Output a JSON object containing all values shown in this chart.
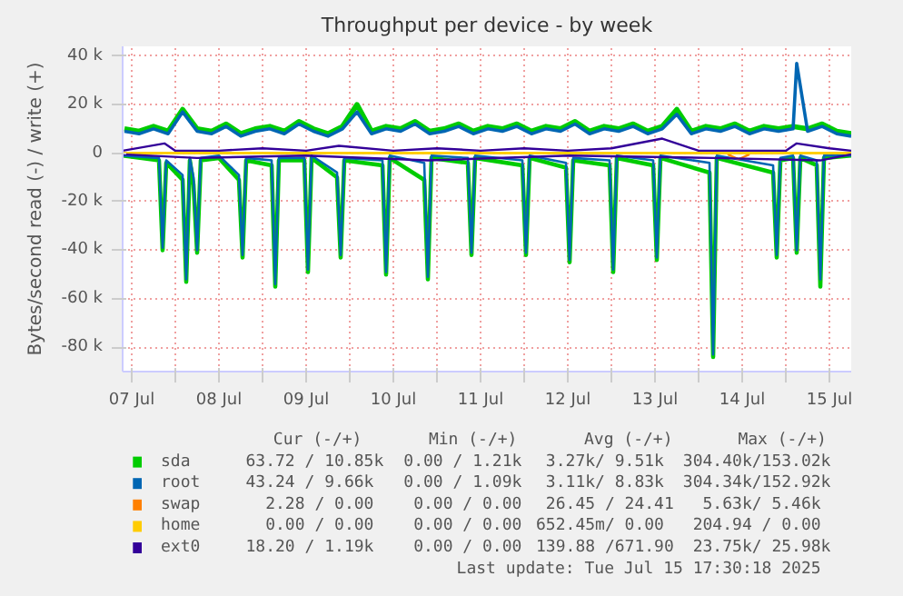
{
  "chart_data": {
    "type": "line",
    "title": "Throughput per device - by week",
    "ylabel": "Bytes/second read (-) / write (+)",
    "xlim": [
      "2025-07-07T09:30",
      "2025-07-15T18:00"
    ],
    "xticks": [
      {
        "value": "2025-07-07T12:00",
        "label": "07 Jul"
      },
      {
        "value": "2025-07-08T00:00",
        "label": null
      },
      {
        "value": "2025-07-08T12:00",
        "label": "08 Jul"
      },
      {
        "value": "2025-07-09T00:00",
        "label": null
      },
      {
        "value": "2025-07-09T12:00",
        "label": "09 Jul"
      },
      {
        "value": "2025-07-10T00:00",
        "label": null
      },
      {
        "value": "2025-07-10T12:00",
        "label": "10 Jul"
      },
      {
        "value": "2025-07-11T00:00",
        "label": null
      },
      {
        "value": "2025-07-11T12:00",
        "label": "11 Jul"
      },
      {
        "value": "2025-07-12T00:00",
        "label": null
      },
      {
        "value": "2025-07-12T12:00",
        "label": "12 Jul"
      },
      {
        "value": "2025-07-13T00:00",
        "label": null
      },
      {
        "value": "2025-07-13T12:00",
        "label": "13 Jul"
      },
      {
        "value": "2025-07-14T00:00",
        "label": null
      },
      {
        "value": "2025-07-14T12:00",
        "label": "14 Jul"
      },
      {
        "value": "2025-07-15T00:00",
        "label": null
      },
      {
        "value": "2025-07-15T12:00",
        "label": "15 Jul"
      }
    ],
    "ylim": [
      -90000,
      44000
    ],
    "yticks": [
      {
        "value": -80000,
        "label": "-80 k"
      },
      {
        "value": -60000,
        "label": "-60 k"
      },
      {
        "value": -40000,
        "label": "-40 k"
      },
      {
        "value": -20000,
        "label": "-20 k"
      },
      0,
      {
        "value": 20000,
        "label": "20 k"
      },
      {
        "value": 40000,
        "label": "40 k"
      }
    ],
    "grid": true,
    "legend": "bottom",
    "line_style": "solid",
    "series": [
      {
        "name": "sda",
        "color": "#00cc00",
        "x": [
          "2025-07-07T10:00",
          "2025-07-07T14:00",
          "2025-07-07T18:00",
          "2025-07-07T22:00",
          "2025-07-08T02:00",
          "2025-07-08T06:00",
          "2025-07-08T10:00",
          "2025-07-08T14:00",
          "2025-07-08T18:00",
          "2025-07-08T22:00",
          "2025-07-09T02:00",
          "2025-07-09T06:00",
          "2025-07-09T10:00",
          "2025-07-09T14:00",
          "2025-07-09T18:00",
          "2025-07-09T22:00",
          "2025-07-10T02:00",
          "2025-07-10T06:00",
          "2025-07-10T10:00",
          "2025-07-10T14:00",
          "2025-07-10T18:00",
          "2025-07-10T22:00",
          "2025-07-11T02:00",
          "2025-07-11T06:00",
          "2025-07-11T10:00",
          "2025-07-11T14:00",
          "2025-07-11T18:00",
          "2025-07-11T22:00",
          "2025-07-12T02:00",
          "2025-07-12T06:00",
          "2025-07-12T10:00",
          "2025-07-12T14:00",
          "2025-07-12T18:00",
          "2025-07-12T22:00",
          "2025-07-13T02:00",
          "2025-07-13T06:00",
          "2025-07-13T10:00",
          "2025-07-13T14:00",
          "2025-07-13T18:00",
          "2025-07-13T22:00",
          "2025-07-14T02:00",
          "2025-07-14T06:00",
          "2025-07-14T10:00",
          "2025-07-14T14:00",
          "2025-07-14T18:00",
          "2025-07-14T22:00",
          "2025-07-15T02:00",
          "2025-07-15T06:00",
          "2025-07-15T10:00",
          "2025-07-15T14:00",
          "2025-07-15T18:00"
        ],
        "values": [
          10000,
          9000,
          11000,
          9000,
          18000,
          10000,
          9000,
          12000,
          8000,
          10000,
          11000,
          9000,
          13000,
          10000,
          8000,
          11000,
          20000,
          9000,
          11000,
          10000,
          13000,
          9000,
          10000,
          12000,
          9000,
          11000,
          10000,
          12000,
          9000,
          11000,
          10000,
          13000,
          9000,
          11000,
          10000,
          12000,
          9000,
          11000,
          18000,
          9000,
          11000,
          10000,
          12000,
          9000,
          11000,
          10000,
          11000,
          10000,
          12000,
          9000,
          8000
        ]
      },
      {
        "color": "#00cc00",
        "x": [
          "2025-07-07T09:30",
          "2025-07-07T19:30",
          "2025-07-07T20:30",
          "2025-07-07T21:30",
          "2025-07-08T02:00",
          "2025-07-08T03:00",
          "2025-07-08T04:00",
          "2025-07-08T05:00",
          "2025-07-08T06:00",
          "2025-07-08T07:00",
          "2025-07-08T12:00",
          "2025-07-08T17:30",
          "2025-07-08T18:30",
          "2025-07-08T19:30",
          "2025-07-09T02:30",
          "2025-07-09T03:30",
          "2025-07-09T04:30",
          "2025-07-09T11:30",
          "2025-07-09T12:30",
          "2025-07-09T13:30",
          "2025-07-09T20:30",
          "2025-07-09T21:30",
          "2025-07-09T22:30",
          "2025-07-10T09:00",
          "2025-07-10T10:00",
          "2025-07-10T11:00",
          "2025-07-10T20:30",
          "2025-07-10T21:30",
          "2025-07-10T22:30",
          "2025-07-11T08:30",
          "2025-07-11T09:30",
          "2025-07-11T10:30",
          "2025-07-11T23:30",
          "2025-07-12T00:30",
          "2025-07-12T01:30",
          "2025-07-12T11:30",
          "2025-07-12T12:30",
          "2025-07-12T13:30",
          "2025-07-12T23:30",
          "2025-07-13T00:30",
          "2025-07-13T01:30",
          "2025-07-13T11:30",
          "2025-07-13T12:30",
          "2025-07-13T13:30",
          "2025-07-14T03:00",
          "2025-07-14T04:00",
          "2025-07-14T05:00",
          "2025-07-14T20:30",
          "2025-07-14T21:30",
          "2025-07-14T22:30",
          "2025-07-15T02:00",
          "2025-07-15T03:00",
          "2025-07-15T04:00",
          "2025-07-15T08:30",
          "2025-07-15T09:30",
          "2025-07-15T10:30",
          "2025-07-15T18:00"
        ],
        "values": [
          -1000,
          -3000,
          -40000,
          -4000,
          -11000,
          -53000,
          -3000,
          -13000,
          -41000,
          -3000,
          -2000,
          -11000,
          -43000,
          -3000,
          -5000,
          -55000,
          -3000,
          -3000,
          -49000,
          -2000,
          -10000,
          -43000,
          -3000,
          -5000,
          -50000,
          -2000,
          -11000,
          -52000,
          -2000,
          -4000,
          -42000,
          -2000,
          -5000,
          -42000,
          -2000,
          -6000,
          -45000,
          -3000,
          -5000,
          -49000,
          -2000,
          -5000,
          -44000,
          -2000,
          -8000,
          -84000,
          -2000,
          -8000,
          -43000,
          -3000,
          -2000,
          -41000,
          -2000,
          -5000,
          -55000,
          -2000,
          -1000
        ]
      },
      {
        "name": "root",
        "color": "#0066b3",
        "x": [
          "2025-07-07T10:00",
          "2025-07-07T14:00",
          "2025-07-07T18:00",
          "2025-07-07T22:00",
          "2025-07-08T02:00",
          "2025-07-08T06:00",
          "2025-07-08T10:00",
          "2025-07-08T14:00",
          "2025-07-08T18:00",
          "2025-07-08T22:00",
          "2025-07-09T02:00",
          "2025-07-09T06:00",
          "2025-07-09T10:00",
          "2025-07-09T14:00",
          "2025-07-09T18:00",
          "2025-07-09T22:00",
          "2025-07-10T02:00",
          "2025-07-10T06:00",
          "2025-07-10T10:00",
          "2025-07-10T14:00",
          "2025-07-10T18:00",
          "2025-07-10T22:00",
          "2025-07-11T02:00",
          "2025-07-11T06:00",
          "2025-07-11T10:00",
          "2025-07-11T14:00",
          "2025-07-11T18:00",
          "2025-07-11T22:00",
          "2025-07-12T02:00",
          "2025-07-12T06:00",
          "2025-07-12T10:00",
          "2025-07-12T14:00",
          "2025-07-12T18:00",
          "2025-07-12T22:00",
          "2025-07-13T02:00",
          "2025-07-13T06:00",
          "2025-07-13T10:00",
          "2025-07-13T14:00",
          "2025-07-13T18:00",
          "2025-07-13T22:00",
          "2025-07-14T02:00",
          "2025-07-14T06:00",
          "2025-07-14T10:00",
          "2025-07-14T14:00",
          "2025-07-14T18:00",
          "2025-07-14T22:00",
          "2025-07-15T02:00",
          "2025-07-15T03:00",
          "2025-07-15T06:00",
          "2025-07-15T10:00",
          "2025-07-15T14:00",
          "2025-07-15T18:00"
        ],
        "values": [
          9000,
          8000,
          10000,
          8000,
          17000,
          9000,
          8000,
          11000,
          7000,
          9000,
          10000,
          8000,
          12000,
          9000,
          7000,
          10000,
          17000,
          8000,
          10000,
          9000,
          12000,
          8000,
          9000,
          11000,
          8000,
          10000,
          9000,
          11000,
          8000,
          10000,
          9000,
          12000,
          8000,
          10000,
          9000,
          11000,
          8000,
          10000,
          16000,
          8000,
          10000,
          9000,
          11000,
          8000,
          10000,
          9000,
          10000,
          37000,
          9000,
          11000,
          8000,
          7000
        ]
      },
      {
        "color": "#0066b3",
        "x": [
          "2025-07-07T09:30",
          "2025-07-07T19:30",
          "2025-07-07T20:30",
          "2025-07-07T21:30",
          "2025-07-08T02:00",
          "2025-07-08T03:00",
          "2025-07-08T04:00",
          "2025-07-08T05:00",
          "2025-07-08T06:00",
          "2025-07-08T07:00",
          "2025-07-08T12:00",
          "2025-07-08T17:30",
          "2025-07-08T18:30",
          "2025-07-08T19:30",
          "2025-07-09T02:30",
          "2025-07-09T03:30",
          "2025-07-09T04:30",
          "2025-07-09T11:30",
          "2025-07-09T12:30",
          "2025-07-09T13:30",
          "2025-07-09T20:30",
          "2025-07-09T21:30",
          "2025-07-09T22:30",
          "2025-07-10T09:00",
          "2025-07-10T10:00",
          "2025-07-10T11:00",
          "2025-07-10T20:30",
          "2025-07-10T21:30",
          "2025-07-10T22:30",
          "2025-07-11T08:30",
          "2025-07-11T09:30",
          "2025-07-11T10:30",
          "2025-07-11T23:30",
          "2025-07-12T00:30",
          "2025-07-12T01:30",
          "2025-07-12T11:30",
          "2025-07-12T12:30",
          "2025-07-12T13:30",
          "2025-07-12T23:30",
          "2025-07-13T00:30",
          "2025-07-13T01:30",
          "2025-07-13T11:30",
          "2025-07-13T12:30",
          "2025-07-13T13:30",
          "2025-07-14T03:00",
          "2025-07-14T04:00",
          "2025-07-14T05:00",
          "2025-07-14T20:30",
          "2025-07-14T21:30",
          "2025-07-14T22:30",
          "2025-07-15T02:00",
          "2025-07-15T03:00",
          "2025-07-15T04:00",
          "2025-07-15T08:30",
          "2025-07-15T09:30",
          "2025-07-15T10:30",
          "2025-07-15T18:00"
        ],
        "values": [
          -1000,
          -2000,
          -39000,
          -3000,
          -9000,
          -52000,
          -2000,
          -10000,
          -40000,
          -2000,
          -1000,
          -9000,
          -42000,
          -2000,
          -3000,
          -54000,
          -2000,
          -2000,
          -48000,
          -1000,
          -8000,
          -42000,
          -2000,
          -3000,
          -49000,
          -1000,
          -4000,
          -51000,
          -1000,
          -2000,
          -41000,
          -1000,
          -3000,
          -41000,
          -1000,
          -4000,
          -44000,
          -2000,
          -3000,
          -48000,
          -1000,
          -3000,
          -43000,
          -1000,
          -4000,
          -83000,
          -1000,
          -5000,
          -42000,
          -2000,
          -1000,
          -40000,
          -1000,
          -3000,
          -52000,
          -1000,
          -1000
        ]
      },
      {
        "name": "swap",
        "color": "#ff8000",
        "x": [
          "2025-07-14T08:00",
          "2025-07-14T11:00",
          "2025-07-14T14:00"
        ],
        "values": [
          -500,
          -2500,
          -500
        ]
      },
      {
        "name": "home",
        "color": "#ffcc00",
        "x": [
          "2025-07-07T09:30",
          "2025-07-15T18:00"
        ],
        "values": [
          0,
          0
        ]
      },
      {
        "color": "#ffcc00",
        "x": [
          "2025-07-07T09:30",
          "2025-07-15T18:00"
        ],
        "values": [
          0,
          0
        ]
      },
      {
        "name": "ext0",
        "color": "#330099",
        "x": [
          "2025-07-07T09:30",
          "2025-07-07T21:00",
          "2025-07-08T00:00",
          "2025-07-08T12:00",
          "2025-07-09T00:00",
          "2025-07-09T12:00",
          "2025-07-09T21:00",
          "2025-07-10T12:00",
          "2025-07-11T00:00",
          "2025-07-11T12:00",
          "2025-07-12T00:00",
          "2025-07-12T12:00",
          "2025-07-13T00:00",
          "2025-07-13T14:00",
          "2025-07-14T00:00",
          "2025-07-14T12:00",
          "2025-07-15T00:00",
          "2025-07-15T03:00",
          "2025-07-15T12:00",
          "2025-07-15T18:00"
        ],
        "values": [
          1000,
          4000,
          1000,
          1000,
          2000,
          1000,
          3000,
          1000,
          2000,
          1000,
          2000,
          1000,
          2000,
          6000,
          1000,
          1000,
          1000,
          4000,
          2000,
          1000
        ]
      },
      {
        "color": "#330099",
        "x": [
          "2025-07-07T09:30",
          "2025-07-08T06:00",
          "2025-07-09T12:00",
          "2025-07-10T21:30",
          "2025-07-12T12:30",
          "2025-07-14T04:00",
          "2025-07-15T09:30",
          "2025-07-15T18:00"
        ],
        "values": [
          -500,
          -2000,
          -1000,
          -3000,
          -1000,
          -2000,
          -3000,
          -500
        ]
      }
    ],
    "annotations": [
      "Cur (-/+)",
      "Min (-/+)",
      "Avg (-/+)",
      "Max (-/+)",
      "63.72 / 10.85k",
      "0.00 /  1.21k",
      "3.27k/  9.51k",
      "304.40k/153.02k",
      "43.24 /  9.66k",
      "0.00 /  1.09k",
      "3.11k/  8.83k",
      "304.34k/152.92k",
      "2.28 /  0.00",
      "0.00 /  0.00",
      "26.45 / 24.41",
      "5.63k/  5.46k",
      "0.00 /  0.00",
      "0.00 /  0.00",
      "652.45m/  0.00",
      "204.94 /  0.00",
      "18.20 /  1.19k",
      "0.00 /  0.00",
      "139.88 /671.90",
      "23.75k/ 25.98k",
      "Last update:  Tue Jul 15 17:30:18 2025"
    ]
  }
}
